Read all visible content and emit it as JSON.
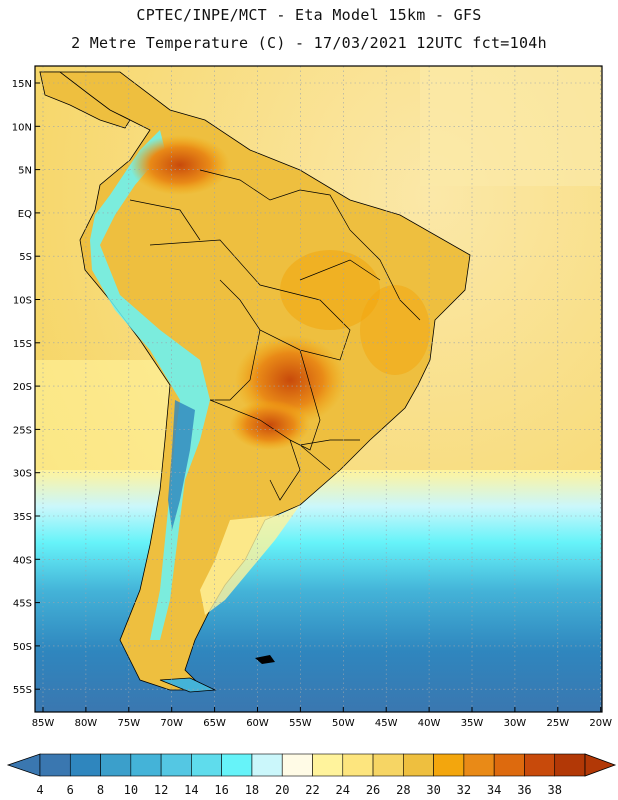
{
  "header": {
    "line1": "CPTEC/INPE/MCT -  Eta Model 15km - GFS",
    "line2": "2 Metre Temperature (C) - 17/03/2021 12UTC fct=104h"
  },
  "axes": {
    "lat_labels": [
      "15N",
      "10N",
      "5N",
      "EQ",
      "5S",
      "10S",
      "15S",
      "20S",
      "25S",
      "30S",
      "35S",
      "40S",
      "45S",
      "50S",
      "55S"
    ],
    "lon_labels": [
      "85W",
      "80W",
      "75W",
      "70W",
      "65W",
      "60W",
      "55W",
      "50W",
      "45W",
      "40W",
      "35W",
      "30W",
      "25W",
      "20W"
    ]
  },
  "colorbar": {
    "levels": [
      "4",
      "6",
      "8",
      "10",
      "12",
      "14",
      "16",
      "18",
      "20",
      "22",
      "24",
      "26",
      "28",
      "30",
      "32",
      "34",
      "36",
      "38"
    ],
    "colors": [
      "#3a77b0",
      "#2f86be",
      "#3b9fcb",
      "#44b3d8",
      "#54c7e3",
      "#5fdcec",
      "#66f3f9",
      "#cbf7fb",
      "#fffbe6",
      "#fff39c",
      "#fde57e",
      "#f6d564",
      "#eebf3f",
      "#f3a60d",
      "#e98a17",
      "#dd6a0e",
      "#c84a0b",
      "#b23806"
    ]
  },
  "legend_semantics": {
    "variable": "2 Metre Temperature",
    "units": "C"
  }
}
